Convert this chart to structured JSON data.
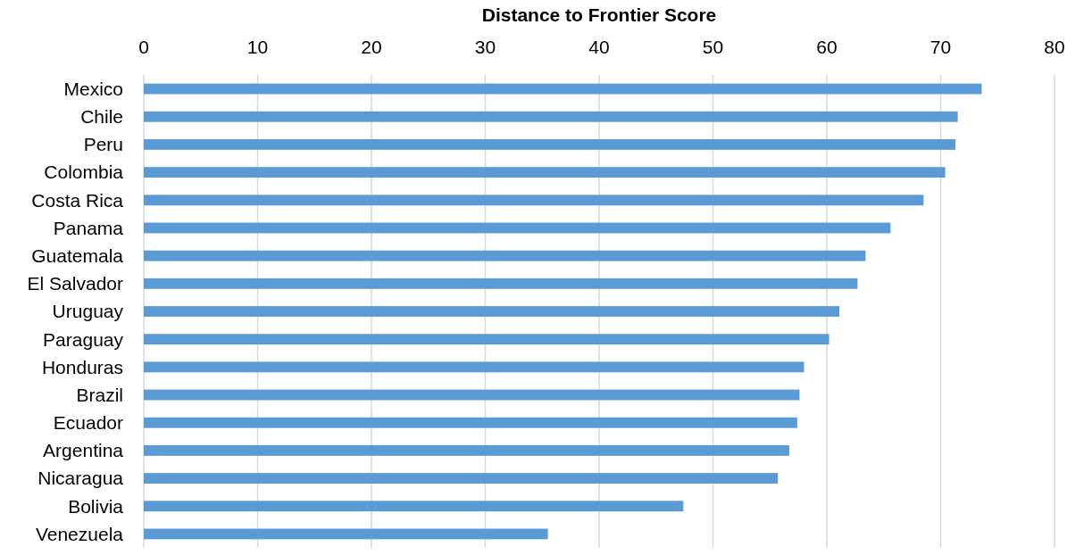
{
  "chart_data": {
    "type": "bar",
    "orientation": "horizontal",
    "xlabel": "Distance to Frontier Score",
    "categories": [
      "Mexico",
      "Chile",
      "Peru",
      "Colombia",
      "Costa Rica",
      "Panama",
      "Guatemala",
      "El Salvador",
      "Uruguay",
      "Paraguay",
      "Honduras",
      "Brazil",
      "Ecuador",
      "Argentina",
      "Nicaragua",
      "Bolivia",
      "Venezuela"
    ],
    "values": [
      73.6,
      71.5,
      71.3,
      70.4,
      68.5,
      65.6,
      63.4,
      62.7,
      61.1,
      60.2,
      58.0,
      57.6,
      57.4,
      56.7,
      55.7,
      47.4,
      35.5
    ],
    "color": "#5b9bd5",
    "xlim": [
      0,
      80
    ],
    "xticks": [
      0,
      10,
      20,
      30,
      40,
      50,
      60,
      70,
      80
    ],
    "grid": "x"
  }
}
